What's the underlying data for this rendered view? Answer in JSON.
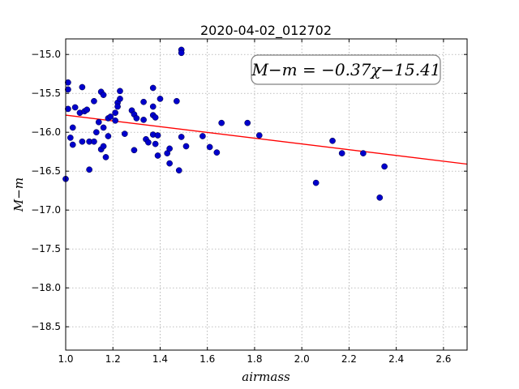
{
  "chart_data": {
    "type": "scatter",
    "title": "2020-04-02_012702",
    "xlabel": "airmass",
    "ylabel": "M−m",
    "xlim": [
      1.0,
      2.7
    ],
    "ylim": [
      -18.8,
      -14.8
    ],
    "x_ticks": [
      "1.0",
      "1.2",
      "1.4",
      "1.6",
      "1.8",
      "2.0",
      "2.2",
      "2.4",
      "2.6"
    ],
    "y_ticks": [
      "−15.0",
      "−15.5",
      "−16.0",
      "−16.5",
      "−17.0",
      "−17.5",
      "−18.0",
      "−18.5"
    ],
    "grid": true,
    "annotation": "M−m = −0.37χ−15.41",
    "fit": {
      "slope": -0.37,
      "intercept": -15.41,
      "color": "#ff0000"
    },
    "point_color": "#0000cc",
    "points": [
      [
        1.0,
        -16.6
      ],
      [
        1.01,
        -15.36
      ],
      [
        1.01,
        -15.45
      ],
      [
        1.01,
        -15.7
      ],
      [
        1.02,
        -16.07
      ],
      [
        1.03,
        -16.16
      ],
      [
        1.03,
        -15.94
      ],
      [
        1.04,
        -15.68
      ],
      [
        1.06,
        -15.75
      ],
      [
        1.07,
        -16.12
      ],
      [
        1.07,
        -15.42
      ],
      [
        1.08,
        -15.73
      ],
      [
        1.09,
        -15.71
      ],
      [
        1.1,
        -16.48
      ],
      [
        1.1,
        -16.12
      ],
      [
        1.12,
        -16.12
      ],
      [
        1.12,
        -15.6
      ],
      [
        1.13,
        -16.0
      ],
      [
        1.14,
        -15.87
      ],
      [
        1.15,
        -15.48
      ],
      [
        1.15,
        -16.22
      ],
      [
        1.16,
        -16.18
      ],
      [
        1.16,
        -15.52
      ],
      [
        1.16,
        -15.94
      ],
      [
        1.17,
        -16.32
      ],
      [
        1.18,
        -16.05
      ],
      [
        1.18,
        -15.82
      ],
      [
        1.19,
        -15.8
      ],
      [
        1.21,
        -15.75
      ],
      [
        1.21,
        -15.85
      ],
      [
        1.22,
        -15.62
      ],
      [
        1.22,
        -15.67
      ],
      [
        1.23,
        -15.57
      ],
      [
        1.23,
        -15.47
      ],
      [
        1.25,
        -16.02
      ],
      [
        1.28,
        -15.72
      ],
      [
        1.29,
        -15.77
      ],
      [
        1.29,
        -16.23
      ],
      [
        1.3,
        -15.82
      ],
      [
        1.33,
        -15.61
      ],
      [
        1.33,
        -15.84
      ],
      [
        1.34,
        -16.09
      ],
      [
        1.35,
        -16.13
      ],
      [
        1.37,
        -15.43
      ],
      [
        1.37,
        -16.03
      ],
      [
        1.37,
        -15.78
      ],
      [
        1.37,
        -15.67
      ],
      [
        1.38,
        -15.81
      ],
      [
        1.38,
        -16.15
      ],
      [
        1.39,
        -16.3
      ],
      [
        1.39,
        -16.04
      ],
      [
        1.4,
        -15.57
      ],
      [
        1.43,
        -16.27
      ],
      [
        1.44,
        -16.4
      ],
      [
        1.44,
        -16.21
      ],
      [
        1.47,
        -15.6
      ],
      [
        1.48,
        -16.49
      ],
      [
        1.49,
        -16.06
      ],
      [
        1.49,
        -14.94
      ],
      [
        1.49,
        -14.98
      ],
      [
        1.51,
        -16.18
      ],
      [
        1.58,
        -16.05
      ],
      [
        1.61,
        -16.19
      ],
      [
        1.64,
        -16.26
      ],
      [
        1.66,
        -15.88
      ],
      [
        1.77,
        -15.88
      ],
      [
        1.82,
        -16.04
      ],
      [
        2.06,
        -16.65
      ],
      [
        2.13,
        -16.11
      ],
      [
        2.17,
        -16.27
      ],
      [
        2.26,
        -16.27
      ],
      [
        2.33,
        -16.84
      ],
      [
        2.35,
        -16.44
      ]
    ]
  }
}
